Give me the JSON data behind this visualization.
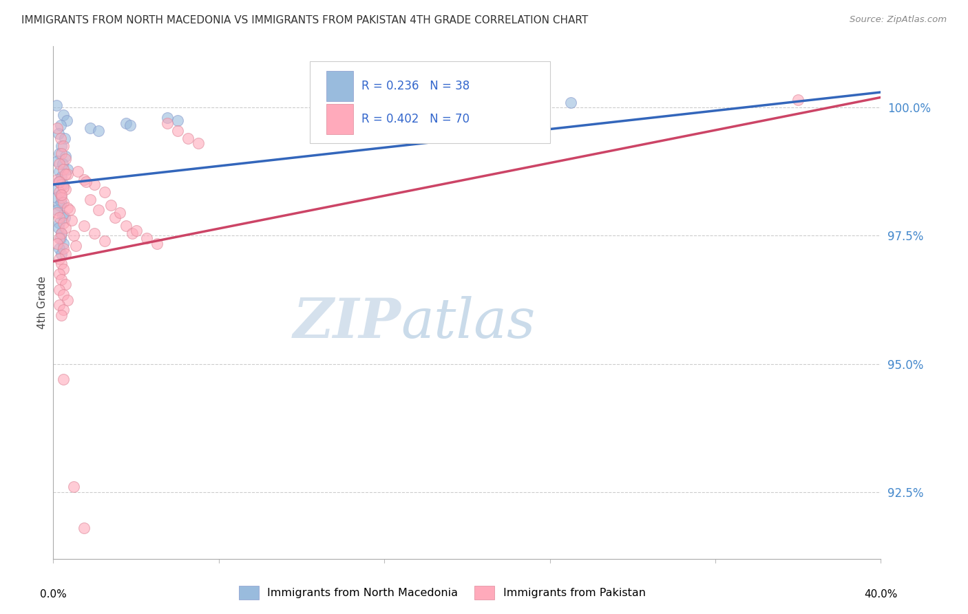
{
  "title": "IMMIGRANTS FROM NORTH MACEDONIA VS IMMIGRANTS FROM PAKISTAN 4TH GRADE CORRELATION CHART",
  "source": "Source: ZipAtlas.com",
  "ylabel": "4th Grade",
  "y_ticks": [
    100.0,
    97.5,
    95.0,
    92.5
  ],
  "y_tick_labels": [
    "100.0%",
    "97.5%",
    "95.0%",
    "92.5%"
  ],
  "xlim": [
    0.0,
    40.0
  ],
  "ylim": [
    91.2,
    101.2
  ],
  "legend_label_blue": "Immigrants from North Macedonia",
  "legend_label_pink": "Immigrants from Pakistan",
  "blue_color": "#99BBDD",
  "pink_color": "#FFAABB",
  "blue_line_color": "#3366BB",
  "pink_line_color": "#CC4466",
  "blue_scatter": [
    [
      0.15,
      100.05
    ],
    [
      0.5,
      99.85
    ],
    [
      0.65,
      99.75
    ],
    [
      0.35,
      99.65
    ],
    [
      0.25,
      99.5
    ],
    [
      0.55,
      99.4
    ],
    [
      0.4,
      99.25
    ],
    [
      0.3,
      99.1
    ],
    [
      0.6,
      99.05
    ],
    [
      0.2,
      98.95
    ],
    [
      0.45,
      98.9
    ],
    [
      0.7,
      98.8
    ],
    [
      0.3,
      98.75
    ],
    [
      0.4,
      98.65
    ],
    [
      0.25,
      98.55
    ],
    [
      0.5,
      98.5
    ],
    [
      0.2,
      98.4
    ],
    [
      0.35,
      98.3
    ],
    [
      0.15,
      98.25
    ],
    [
      0.4,
      98.15
    ],
    [
      0.3,
      98.1
    ],
    [
      0.2,
      98.0
    ],
    [
      0.45,
      97.9
    ],
    [
      0.55,
      97.85
    ],
    [
      0.3,
      97.75
    ],
    [
      0.25,
      97.65
    ],
    [
      0.4,
      97.55
    ],
    [
      0.35,
      97.45
    ],
    [
      0.5,
      97.35
    ],
    [
      0.3,
      97.25
    ],
    [
      0.4,
      97.15
    ],
    [
      1.8,
      99.6
    ],
    [
      2.2,
      99.55
    ],
    [
      3.5,
      99.7
    ],
    [
      3.7,
      99.65
    ],
    [
      5.5,
      99.8
    ],
    [
      6.0,
      99.75
    ],
    [
      25.0,
      100.1
    ]
  ],
  "pink_scatter": [
    [
      0.2,
      99.6
    ],
    [
      0.35,
      99.4
    ],
    [
      0.5,
      99.25
    ],
    [
      0.4,
      99.1
    ],
    [
      0.6,
      99.0
    ],
    [
      0.3,
      98.9
    ],
    [
      0.5,
      98.8
    ],
    [
      0.7,
      98.7
    ],
    [
      0.2,
      98.6
    ],
    [
      0.4,
      98.5
    ],
    [
      0.6,
      98.4
    ],
    [
      0.3,
      98.35
    ],
    [
      0.4,
      98.25
    ],
    [
      0.5,
      98.15
    ],
    [
      0.7,
      98.05
    ],
    [
      0.2,
      97.95
    ],
    [
      0.3,
      97.85
    ],
    [
      0.5,
      97.75
    ],
    [
      0.6,
      97.65
    ],
    [
      0.4,
      97.55
    ],
    [
      0.3,
      97.45
    ],
    [
      0.2,
      97.35
    ],
    [
      0.5,
      97.25
    ],
    [
      0.6,
      97.15
    ],
    [
      0.3,
      97.05
    ],
    [
      0.4,
      96.95
    ],
    [
      0.5,
      96.85
    ],
    [
      0.3,
      96.75
    ],
    [
      0.4,
      96.65
    ],
    [
      0.6,
      96.55
    ],
    [
      0.3,
      96.45
    ],
    [
      0.5,
      96.35
    ],
    [
      0.7,
      96.25
    ],
    [
      0.3,
      96.15
    ],
    [
      0.5,
      96.05
    ],
    [
      0.4,
      95.95
    ],
    [
      0.6,
      98.7
    ],
    [
      0.3,
      98.55
    ],
    [
      0.5,
      98.45
    ],
    [
      0.4,
      98.3
    ],
    [
      1.5,
      98.6
    ],
    [
      2.0,
      98.5
    ],
    [
      2.5,
      98.35
    ],
    [
      1.8,
      98.2
    ],
    [
      2.2,
      98.0
    ],
    [
      1.5,
      97.7
    ],
    [
      2.0,
      97.55
    ],
    [
      2.5,
      97.4
    ],
    [
      3.0,
      97.85
    ],
    [
      3.5,
      97.7
    ],
    [
      3.8,
      97.55
    ],
    [
      4.0,
      97.6
    ],
    [
      4.5,
      97.45
    ],
    [
      5.0,
      97.35
    ],
    [
      2.8,
      98.1
    ],
    [
      3.2,
      97.95
    ],
    [
      1.2,
      98.75
    ],
    [
      1.6,
      98.55
    ],
    [
      0.8,
      98.0
    ],
    [
      0.9,
      97.8
    ],
    [
      1.0,
      97.5
    ],
    [
      1.1,
      97.3
    ],
    [
      0.5,
      94.7
    ],
    [
      1.0,
      92.6
    ],
    [
      1.5,
      91.8
    ],
    [
      5.5,
      99.7
    ],
    [
      6.0,
      99.55
    ],
    [
      6.5,
      99.4
    ],
    [
      7.0,
      99.3
    ],
    [
      36.0,
      100.15
    ]
  ],
  "watermark_zip": "ZIP",
  "watermark_atlas": "atlas",
  "grid_color": "#CCCCCC",
  "background_color": "#FFFFFF"
}
